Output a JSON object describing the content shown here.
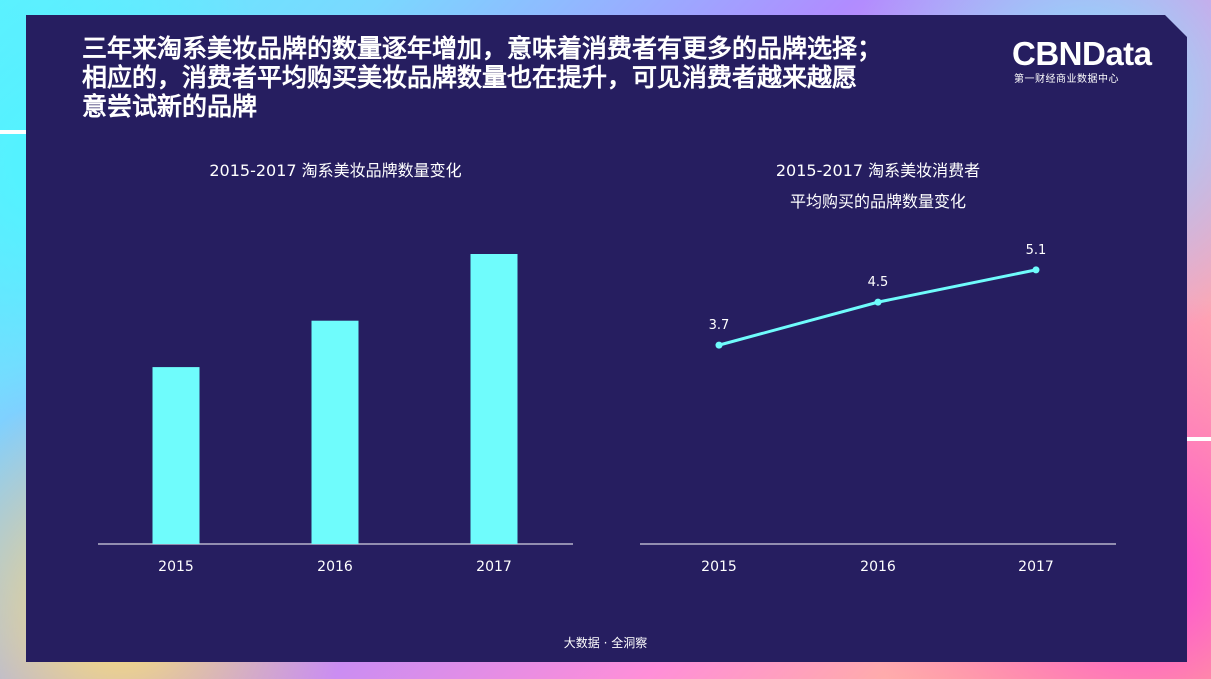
{
  "headline": {
    "line1": "三年来淘系美妆品牌的数量逐年增加，意味着消费者有更多的品牌选择；",
    "line2": "相应的，消费者平均购买美妆品牌数量也在提升，可见消费者越来越愿",
    "line3": "意尝试新的品牌"
  },
  "logo": {
    "main": "CBNData",
    "sub": "第一财经商业数据中心"
  },
  "footer": "大数据 · 全洞察",
  "colors": {
    "panel": "#261e60",
    "accent": "#6ffcfc",
    "text": "#ffffff"
  },
  "chart_data": [
    {
      "type": "bar",
      "title": "2015-2017 淘系美妆品牌数量变化",
      "categories": [
        "2015",
        "2016",
        "2017"
      ],
      "values": [
        61,
        77,
        100
      ],
      "ylim": [
        0,
        100
      ],
      "grid": false,
      "legend": "none"
    },
    {
      "type": "line",
      "title_lines": [
        "2015-2017 淘系美妆消费者",
        "平均购买的品牌数量变化"
      ],
      "categories": [
        "2015",
        "2016",
        "2017"
      ],
      "values": [
        3.7,
        4.5,
        5.1
      ],
      "value_labels": [
        "3.7",
        "4.5",
        "5.1"
      ],
      "ylim": [
        0,
        6.4
      ],
      "grid": false,
      "legend": "none"
    }
  ]
}
